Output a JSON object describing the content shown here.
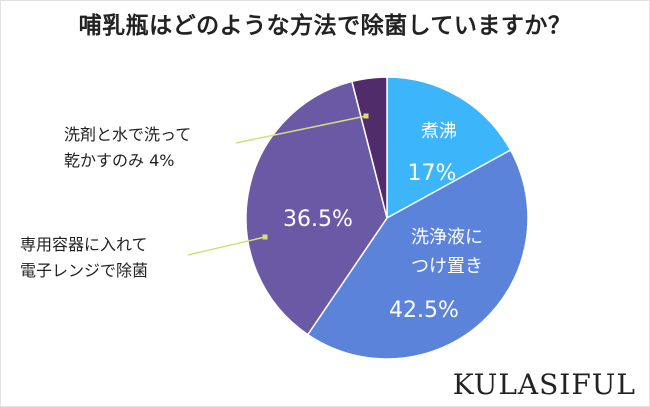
{
  "title": "哺乳瓶はどのような方法で除菌していますか？",
  "logo": "KULASIFUL",
  "chart_data": {
    "type": "pie",
    "title": "哺乳瓶はどのような方法で除菌していますか？",
    "slices": [
      {
        "label": "煮沸",
        "value": 17,
        "value_label": "17%",
        "color": "#3db5fa"
      },
      {
        "label": "洗浄液につけ置き",
        "label_lines": [
          "洗浄液に",
          "つけ置き"
        ],
        "value": 42.5,
        "value_label": "42.5%",
        "color": "#5b83d9"
      },
      {
        "label": "専用容器に入れて電子レンジで除菌",
        "label_lines": [
          "専用容器に入れて",
          "電子レンジで除菌"
        ],
        "value": 36.5,
        "value_label": "36.5%",
        "color": "#6a5aa6"
      },
      {
        "label": "洗剤と水で洗って乾かすのみ",
        "label_lines": [
          "洗剤と水で洗って",
          "乾かすのみ 4%"
        ],
        "value": 4,
        "value_label": "4%",
        "color": "#512c6a"
      }
    ]
  }
}
